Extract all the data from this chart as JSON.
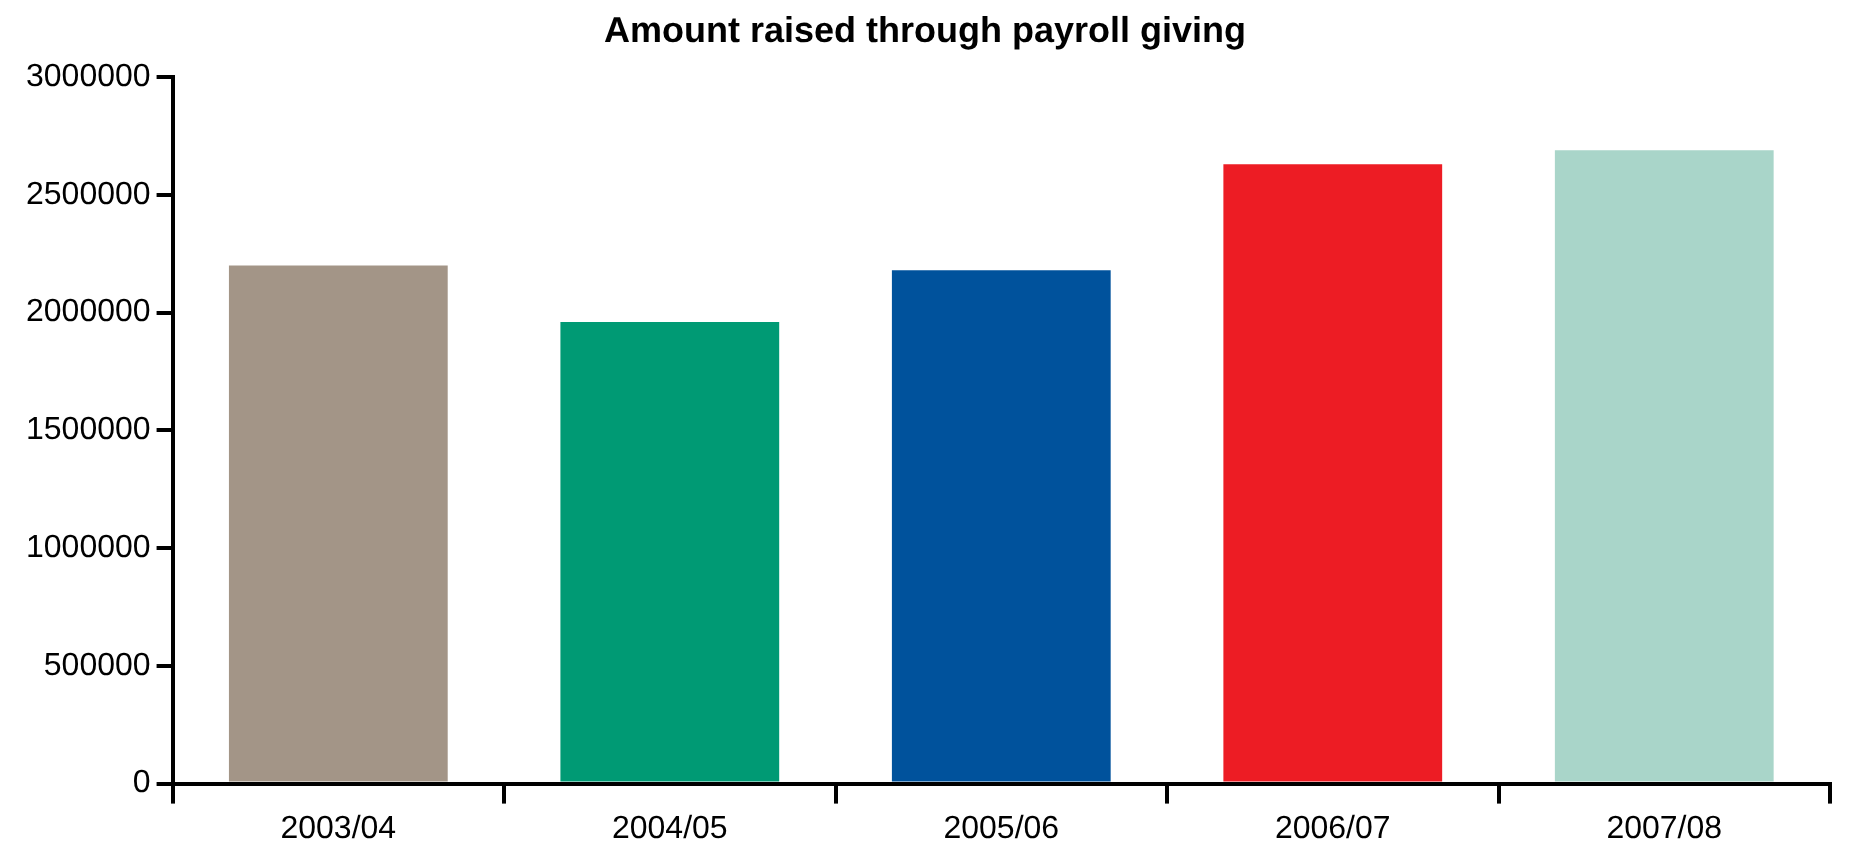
{
  "chart_data": {
    "type": "bar",
    "title": "Amount raised through payroll giving",
    "categories": [
      "2003/04",
      "2004/05",
      "2005/06",
      "2006/07",
      "2007/08"
    ],
    "values": [
      2200000,
      1960000,
      2180000,
      2630000,
      2690000
    ],
    "colors": [
      "#a39587",
      "#009a74",
      "#00529c",
      "#ed1c24",
      "#a9d5c9"
    ],
    "ylim": [
      0,
      3000000
    ],
    "yticks": [
      0,
      500000,
      1000000,
      1500000,
      2000000,
      2500000,
      3000000
    ],
    "grid": false,
    "legend": false
  }
}
